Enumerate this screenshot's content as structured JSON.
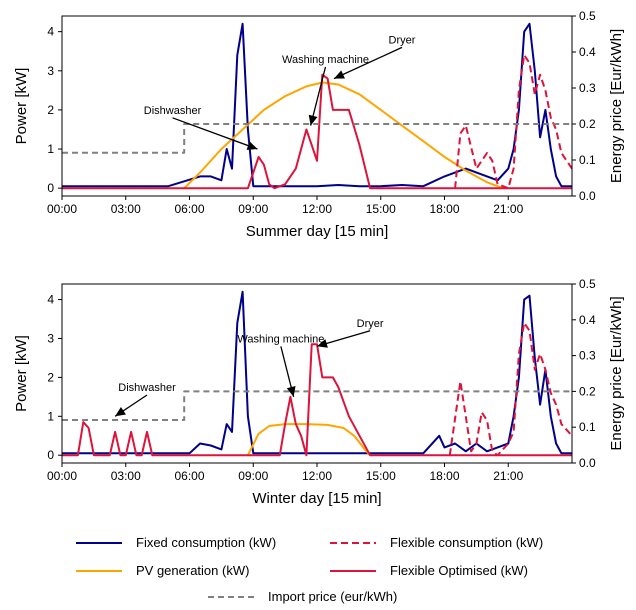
{
  "colors": {
    "fixed": "#00008b",
    "pv": "#ffa500",
    "flexible": "#dc143c",
    "flex_opt": "#dc143c",
    "price": "#808080"
  },
  "legend": {
    "fixed": "Fixed consumption (kW)",
    "flexible": "Flexible consumption (kW)",
    "pv": "PV generation (kW)",
    "flex_opt": "Flexible Optimised (kW)",
    "price": "Import price (eur/kWh)"
  },
  "chart_data": [
    {
      "type": "line",
      "xlabel": "Summer day [15 min]",
      "ylabel": "Power [kW]",
      "y2label": "Energy price [Eur/kWh]",
      "xlim": [
        0,
        24
      ],
      "ylim": [
        -0.2,
        4.4
      ],
      "y2lim": [
        0,
        0.5
      ],
      "x_ticks": [
        "00:00",
        "03:00",
        "06:00",
        "09:00",
        "12:00",
        "15:00",
        "18:00",
        "21:00"
      ],
      "y_ticks": [
        "0",
        "1",
        "2",
        "3",
        "4"
      ],
      "y2_ticks": [
        "0.0",
        "0.1",
        "0.2",
        "0.3",
        "0.4",
        "0.5"
      ],
      "annotations": [
        {
          "text": "Dishwasher",
          "x": 5.2,
          "y": 1.9,
          "ax": 9.2,
          "ay": 1.0
        },
        {
          "text": "Washing machine",
          "x": 12.4,
          "y": 3.2,
          "ax": 11.7,
          "ay": 1.6
        },
        {
          "text": "Dryer",
          "x": 16.0,
          "y": 3.7,
          "ax": 12.8,
          "ay": 2.8
        }
      ],
      "series": [
        {
          "name": "Fixed consumption (kW)",
          "key": "fixed",
          "x": [
            0,
            3,
            4,
            5,
            6.5,
            7,
            7.5,
            7.75,
            8,
            8.25,
            8.5,
            8.75,
            9,
            12,
            13,
            14,
            15,
            16,
            17,
            18,
            19,
            20,
            20.5,
            21,
            21.25,
            21.5,
            21.75,
            22,
            22.25,
            22.5,
            22.75,
            23,
            23.25,
            23.5,
            24
          ],
          "values": [
            0.05,
            0.05,
            0.05,
            0.05,
            0.3,
            0.3,
            0.2,
            1.0,
            0.5,
            3.4,
            4.2,
            1.5,
            0.05,
            0.05,
            0.08,
            0.05,
            0.05,
            0.08,
            0.05,
            0.3,
            0.5,
            0.3,
            0.2,
            0.5,
            1.0,
            2.0,
            4.0,
            4.2,
            3.0,
            1.3,
            2.0,
            1.0,
            0.3,
            0.05,
            0.05
          ]
        },
        {
          "name": "PV generation (kW)",
          "key": "pv",
          "x": [
            5.75,
            6.5,
            7.5,
            8.5,
            9.5,
            10.5,
            11.5,
            12.25,
            13,
            14,
            15,
            16,
            17,
            18,
            19,
            20,
            20.5,
            20.75
          ],
          "values": [
            0,
            0.4,
            1.0,
            1.5,
            2.0,
            2.35,
            2.6,
            2.7,
            2.65,
            2.4,
            2.0,
            1.6,
            1.2,
            0.8,
            0.45,
            0.15,
            0.05,
            0
          ]
        },
        {
          "name": "Flexible consumption (kW)",
          "key": "flexible",
          "x": [
            18.5,
            18.75,
            19,
            19.5,
            20,
            20.25,
            20.5,
            21,
            21.25,
            21.5,
            21.75,
            22,
            22.25,
            22.5,
            22.75,
            23,
            23.25,
            23.5,
            24
          ],
          "values": [
            0,
            1.4,
            1.6,
            0.5,
            0.9,
            0.7,
            0.1,
            0,
            0.5,
            2.5,
            3.4,
            3.2,
            2.4,
            2.9,
            2.5,
            1.8,
            1.5,
            0.9,
            0.5
          ]
        },
        {
          "name": "Flexible Optimised (kW)",
          "key": "flex_opt",
          "x": [
            0,
            8.75,
            9,
            9.25,
            9.5,
            9.75,
            10,
            10.5,
            11,
            11.5,
            11.75,
            12,
            12.25,
            12.5,
            12.75,
            13,
            13.5,
            14,
            14.5,
            15,
            24
          ],
          "values": [
            0,
            0,
            0.4,
            0.8,
            0.6,
            0.1,
            0,
            0.1,
            0.5,
            1.5,
            1.1,
            0.7,
            2.9,
            2.8,
            2.0,
            2.0,
            2.0,
            1.1,
            0,
            0,
            0
          ]
        },
        {
          "name": "Import price (eur/kWh)",
          "key": "price",
          "axis": "right",
          "x": [
            0,
            5.75,
            5.75,
            24
          ],
          "values": [
            0.12,
            0.12,
            0.2,
            0.2
          ]
        }
      ]
    },
    {
      "type": "line",
      "xlabel": "Winter day [15 min]",
      "ylabel": "Power [kW]",
      "y2label": "Energy price [Eur/kWh]",
      "xlim": [
        0,
        24
      ],
      "ylim": [
        -0.2,
        4.4
      ],
      "y2lim": [
        0,
        0.5
      ],
      "x_ticks": [
        "00:00",
        "03:00",
        "06:00",
        "09:00",
        "12:00",
        "15:00",
        "18:00",
        "21:00"
      ],
      "y_ticks": [
        "0",
        "1",
        "2",
        "3",
        "4"
      ],
      "y2_ticks": [
        "0.0",
        "0.1",
        "0.2",
        "0.3",
        "0.4",
        "0.5"
      ],
      "annotations": [
        {
          "text": "Dishwasher",
          "x": 4.0,
          "y": 1.65,
          "ax": 2.5,
          "ay": 1.0
        },
        {
          "text": "Washing machine",
          "x": 10.3,
          "y": 2.9,
          "ax": 10.9,
          "ay": 1.5
        },
        {
          "text": "Dryer",
          "x": 14.5,
          "y": 3.3,
          "ax": 12.0,
          "ay": 2.8
        }
      ],
      "series": [
        {
          "name": "Fixed consumption (kW)",
          "key": "fixed",
          "x": [
            0,
            6,
            6.5,
            7,
            7.5,
            7.75,
            8,
            8.25,
            8.5,
            8.75,
            9,
            12,
            13,
            15,
            17,
            17.75,
            18,
            18.5,
            19,
            19.5,
            20,
            20.5,
            21,
            21.25,
            21.5,
            21.75,
            22,
            22.25,
            22.5,
            22.75,
            23,
            23.25,
            23.5,
            24
          ],
          "values": [
            0.05,
            0.05,
            0.3,
            0.25,
            0.15,
            0.8,
            0.6,
            3.4,
            4.2,
            1.0,
            0.05,
            0.05,
            0.05,
            0.05,
            0.05,
            0.5,
            0.2,
            0.3,
            0.1,
            0.3,
            0.1,
            0.2,
            0.3,
            1.0,
            2.0,
            4.0,
            4.1,
            2.5,
            1.3,
            2.2,
            1.0,
            0.3,
            0.05,
            0.05
          ]
        },
        {
          "name": "PV generation (kW)",
          "key": "pv",
          "x": [
            8.75,
            9.25,
            9.75,
            10.5,
            11.5,
            12.5,
            13.25,
            13.75,
            14.25,
            14.5
          ],
          "values": [
            0,
            0.55,
            0.75,
            0.8,
            0.8,
            0.78,
            0.7,
            0.5,
            0.15,
            0
          ]
        },
        {
          "name": "Flexible consumption (kW)",
          "key": "flexible",
          "x": [
            18.25,
            18.75,
            19.25,
            19.5,
            19.75,
            20,
            20.25,
            20.5,
            21,
            21.25,
            21.5,
            21.75,
            22,
            22.25,
            22.5,
            22.75,
            23,
            23.25,
            23.5,
            24
          ],
          "values": [
            0,
            1.9,
            0.1,
            0.3,
            1.1,
            0.9,
            0.1,
            0,
            0.3,
            0.6,
            2.6,
            3.4,
            3.2,
            2.2,
            2.6,
            2.2,
            1.6,
            1.3,
            0.8,
            0.5
          ]
        },
        {
          "name": "Flexible Optimised (kW)",
          "key": "flex_opt",
          "x": [
            0,
            0.75,
            1,
            1.25,
            1.5,
            1.75,
            2,
            2.25,
            2.5,
            2.75,
            3,
            3.25,
            3.5,
            3.75,
            4,
            4.25,
            4.5,
            4.75,
            10.25,
            10.5,
            10.75,
            11,
            11.25,
            11.5,
            11.75,
            12,
            12.25,
            12.5,
            12.75,
            13,
            13.5,
            14,
            14.5,
            15,
            24
          ],
          "values": [
            0,
            0,
            0.85,
            0.7,
            0,
            0,
            0,
            0,
            0.6,
            0,
            0,
            0.6,
            0,
            0,
            0.6,
            0,
            0,
            0,
            0,
            0.8,
            1.5,
            0.8,
            0.5,
            0,
            2.85,
            2.85,
            2.0,
            2.0,
            2.0,
            1.75,
            1.0,
            0.5,
            0,
            0,
            0
          ]
        },
        {
          "name": "Import price (eur/kWh)",
          "key": "price",
          "axis": "right",
          "x": [
            0,
            5.75,
            5.75,
            24
          ],
          "values": [
            0.12,
            0.12,
            0.2,
            0.2
          ]
        }
      ]
    }
  ]
}
